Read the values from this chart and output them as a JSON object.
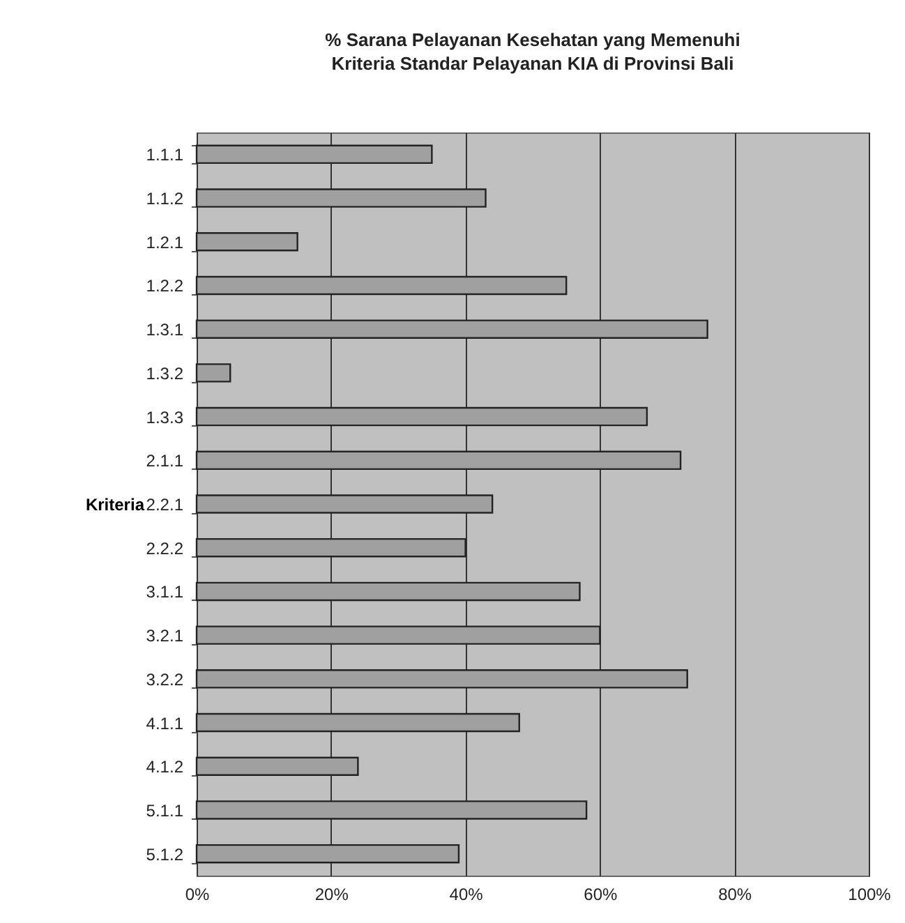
{
  "chart_data": {
    "type": "bar",
    "orientation": "horizontal",
    "title": "% Sarana Pelayanan Kesehatan yang Memenuhi\nKriteria Standar Pelayanan KIA di Provinsi Bali",
    "ylabel": "Kriteria",
    "categories": [
      "1.1.1",
      "1.1.2",
      "1.2.1",
      "1.2.2",
      "1.3.1",
      "1.3.2",
      "1.3.3",
      "2.1.1",
      "2.2.1",
      "2.2.2",
      "3.1.1",
      "3.2.1",
      "3.2.2",
      "4.1.1",
      "4.1.2",
      "5.1.1",
      "5.1.2"
    ],
    "values": [
      35,
      43,
      15,
      55,
      76,
      5,
      67,
      72,
      44,
      40,
      57,
      60,
      73,
      48,
      24,
      58,
      39
    ],
    "color": "#a0a0a0",
    "xlim": [
      0,
      100
    ],
    "xticks": [
      {
        "value": 0,
        "label": "0%"
      },
      {
        "value": 20,
        "label": "20%"
      },
      {
        "value": 40,
        "label": "40%"
      },
      {
        "value": 60,
        "label": "60%"
      },
      {
        "value": 80,
        "label": "80%"
      },
      {
        "value": 100,
        "label": "100%"
      }
    ],
    "grid": "x"
  }
}
